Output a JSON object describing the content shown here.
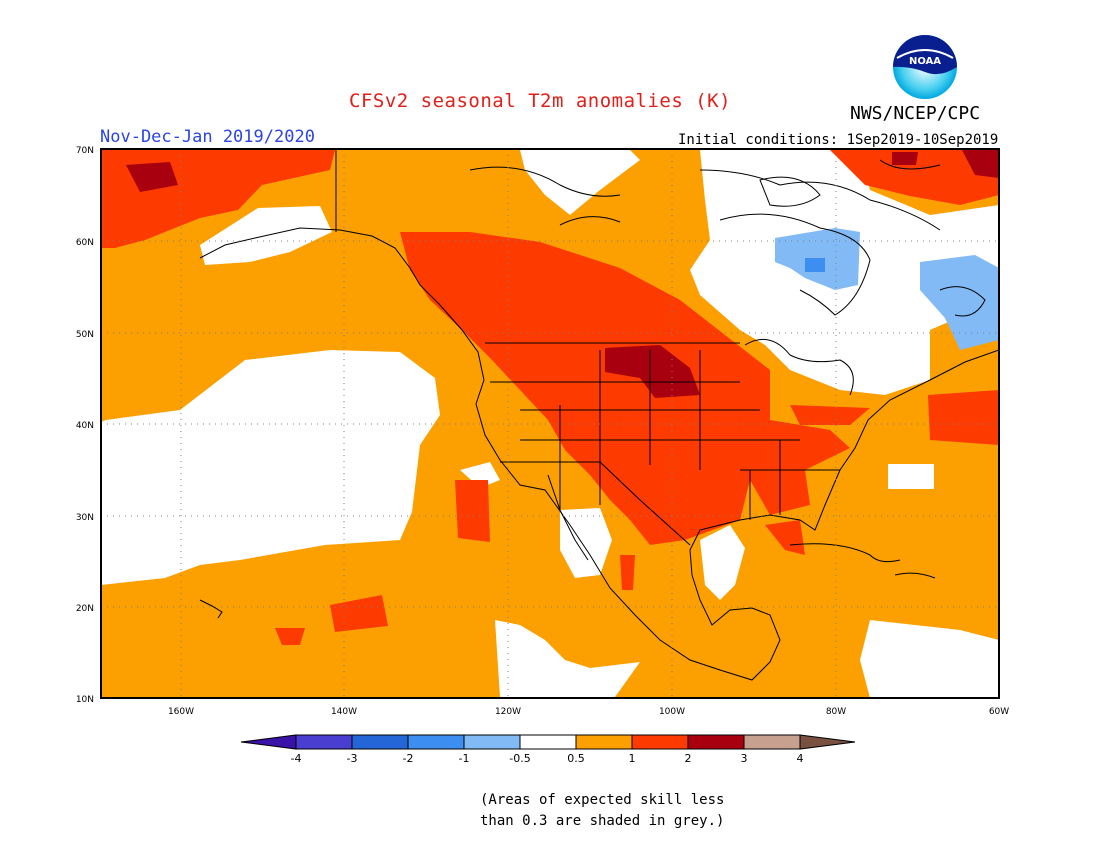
{
  "title": "CFSv2 seasonal T2m anomalies (K)",
  "agency": "NWS/NCEP/CPC",
  "logo_text": "NOAA",
  "period": "Nov-Dec-Jan 2019/2020",
  "initial_conditions": "Initial conditions: 1Sep2019-10Sep2019",
  "map": {
    "lon_range": [
      -170,
      -60
    ],
    "lat_range": [
      10,
      70
    ],
    "lat_labels": [
      "70N",
      "60N",
      "50N",
      "40N",
      "30N",
      "20N",
      "10N"
    ],
    "lon_labels": [
      "160W",
      "140W",
      "120W",
      "100W",
      "80W",
      "60W"
    ],
    "gridlines": "dotted"
  },
  "colorbar": {
    "tick_labels": [
      "-4",
      "-3",
      "-2",
      "-1",
      "-0.5",
      "0.5",
      "1",
      "2",
      "3",
      "4"
    ],
    "bins": [
      {
        "range": "<-4",
        "color": "#3a12a8"
      },
      {
        "range": "-4 to -3",
        "color": "#4a3ed0"
      },
      {
        "range": "-3 to -2",
        "color": "#2466d8"
      },
      {
        "range": "-2 to -1",
        "color": "#3c8ef0"
      },
      {
        "range": "-1 to -0.5",
        "color": "#82baf5"
      },
      {
        "range": "-0.5 to 0.5",
        "color": "#ffffff"
      },
      {
        "range": "0.5 to 1",
        "color": "#fba000"
      },
      {
        "range": "1 to 2",
        "color": "#fd3a00"
      },
      {
        "range": "2 to 3",
        "color": "#a8000f"
      },
      {
        "range": "3 to 4",
        "color": "#c8a090"
      },
      {
        "range": ">4",
        "color": "#7a5040"
      }
    ]
  },
  "note_lines": [
    "(Areas of expected skill less",
    "than 0.3 are shaded in grey.)"
  ]
}
